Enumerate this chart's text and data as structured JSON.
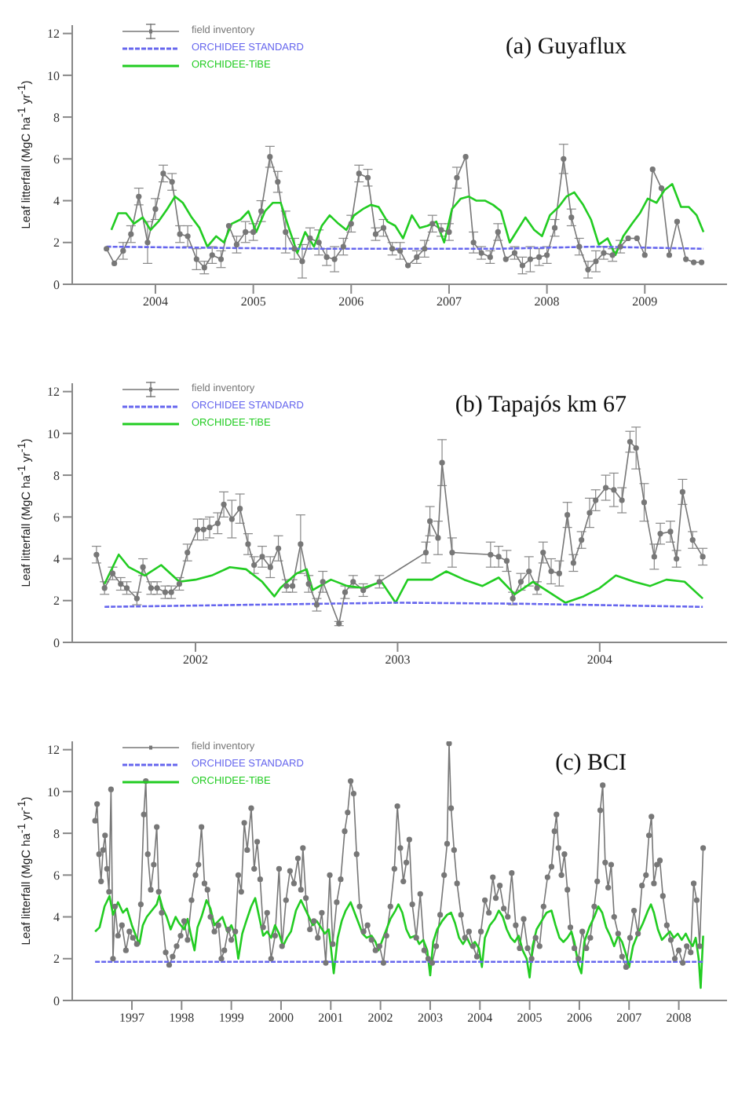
{
  "chart_data": [
    {
      "type": "line",
      "title": "(a) Guyaflux",
      "ylabel": "Leaf litterfall (MgC ha$^{-1}$ yr$^{-1}$)",
      "xlim": [
        2003.15,
        2009.84
      ],
      "xticks": [
        2004,
        2005,
        2006,
        2007,
        2008,
        2009
      ],
      "ylim": [
        0,
        12.4
      ],
      "yticks": [
        0,
        2,
        4,
        6,
        8,
        10,
        12
      ],
      "legend": "top left",
      "series": [
        {
          "name": "field inventory",
          "color": "#777777",
          "marker": "circle",
          "line_style": "solid",
          "x": [
            2003.5,
            2003.58,
            2003.67,
            2003.75,
            2003.83,
            2003.92,
            2004.0,
            2004.08,
            2004.17,
            2004.25,
            2004.33,
            2004.42,
            2004.5,
            2004.58,
            2004.67,
            2004.75,
            2004.83,
            2004.92,
            2005.0,
            2005.08,
            2005.17,
            2005.25,
            2005.33,
            2005.42,
            2005.5,
            2005.58,
            2005.67,
            2005.75,
            2005.83,
            2005.92,
            2006.0,
            2006.08,
            2006.17,
            2006.25,
            2006.33,
            2006.42,
            2006.5,
            2006.58,
            2006.67,
            2006.75,
            2006.83,
            2006.92,
            2007.0,
            2007.08,
            2007.17,
            2007.25,
            2007.33,
            2007.42,
            2007.5,
            2007.58,
            2007.67,
            2007.75,
            2007.83,
            2007.92,
            2008.0,
            2008.08,
            2008.17,
            2008.25,
            2008.33,
            2008.42,
            2008.5,
            2008.58,
            2008.67,
            2008.75,
            2008.83,
            2008.92,
            2009.0,
            2009.08,
            2009.17,
            2009.25,
            2009.33,
            2009.42,
            2009.5,
            2009.58
          ],
          "values": [
            1.7,
            1.0,
            1.6,
            2.4,
            4.2,
            2.0,
            3.6,
            5.3,
            4.9,
            2.4,
            2.3,
            1.2,
            0.8,
            1.4,
            1.2,
            2.8,
            1.9,
            2.5,
            2.5,
            3.5,
            6.1,
            4.9,
            2.5,
            1.7,
            1.1,
            2.2,
            2.0,
            1.3,
            1.2,
            1.8,
            2.9,
            5.3,
            5.1,
            2.4,
            2.7,
            1.7,
            1.6,
            0.9,
            1.3,
            1.7,
            2.9,
            2.6,
            2.5,
            5.1,
            6.1,
            2.0,
            1.5,
            1.3,
            2.5,
            1.2,
            1.5,
            0.9,
            1.2,
            1.3,
            1.4,
            2.7,
            6.0,
            3.2,
            1.8,
            0.7,
            1.1,
            1.5,
            1.4,
            1.8,
            2.2,
            2.2,
            1.4,
            5.5,
            4.6,
            1.4,
            3.0,
            1.2,
            1.05,
            1.05
          ],
          "errors": [
            null,
            null,
            0.4,
            0.4,
            0.4,
            1.0,
            0.5,
            0.4,
            0.4,
            0.4,
            0.5,
            0.5,
            0.3,
            0.4,
            0.4,
            null,
            0.4,
            0.5,
            0.4,
            0.5,
            0.5,
            0.5,
            1.0,
            0.5,
            0.8,
            0.5,
            0.6,
            0.4,
            0.6,
            0.4,
            0.4,
            0.4,
            0.4,
            0.3,
            0.4,
            0.3,
            0.4,
            null,
            0.3,
            0.4,
            0.4,
            0.3,
            0.4,
            0.5,
            null,
            0.5,
            0.3,
            0.3,
            0.4,
            null,
            0.3,
            0.4,
            0.6,
            0.4,
            0.4,
            0.4,
            0.7,
            0.4,
            0.4,
            0.4,
            0.5,
            0.3,
            0.3,
            0.3,
            null,
            null,
            null,
            null,
            null,
            null,
            null,
            null,
            null,
            null
          ]
        },
        {
          "name": "ORCHIDEE STANDARD",
          "color": "#6666ee",
          "marker": "none",
          "line_style": "dashed",
          "x": [
            2003.5,
            2005.5,
            2007.5,
            2008.5,
            2009.6
          ],
          "values": [
            1.8,
            1.7,
            1.7,
            1.8,
            1.7
          ]
        },
        {
          "name": "ORCHIDEE-TiBE",
          "color": "#22cc22",
          "marker": "none",
          "line_style": "solid",
          "x": [
            2003.55,
            2003.62,
            2003.7,
            2003.78,
            2003.87,
            2003.95,
            2004.03,
            2004.12,
            2004.2,
            2004.28,
            2004.37,
            2004.45,
            2004.53,
            2004.62,
            2004.7,
            2004.78,
            2004.87,
            2004.95,
            2005.03,
            2005.12,
            2005.2,
            2005.28,
            2005.37,
            2005.45,
            2005.53,
            2005.62,
            2005.7,
            2005.78,
            2005.87,
            2005.95,
            2006.03,
            2006.12,
            2006.2,
            2006.28,
            2006.37,
            2006.45,
            2006.53,
            2006.62,
            2006.7,
            2006.78,
            2006.87,
            2006.95,
            2007.03,
            2007.12,
            2007.2,
            2007.28,
            2007.37,
            2007.45,
            2007.53,
            2007.62,
            2007.7,
            2007.78,
            2007.87,
            2007.95,
            2008.03,
            2008.12,
            2008.2,
            2008.28,
            2008.37,
            2008.45,
            2008.53,
            2008.62,
            2008.7,
            2008.78,
            2008.87,
            2008.95,
            2009.03,
            2009.12,
            2009.2,
            2009.28,
            2009.37,
            2009.45,
            2009.53,
            2009.6
          ],
          "values": [
            2.6,
            3.4,
            3.4,
            2.9,
            3.2,
            2.6,
            3.0,
            3.6,
            4.2,
            3.9,
            3.2,
            2.7,
            1.8,
            2.3,
            2.0,
            2.9,
            3.1,
            3.5,
            2.5,
            3.5,
            3.9,
            3.9,
            2.6,
            1.5,
            2.5,
            1.8,
            2.8,
            3.3,
            2.9,
            2.6,
            3.3,
            3.6,
            3.8,
            3.7,
            3.0,
            2.8,
            2.2,
            3.3,
            2.7,
            2.8,
            3.0,
            2.0,
            3.6,
            4.1,
            4.2,
            4.0,
            4.0,
            3.8,
            3.5,
            2.0,
            2.6,
            3.2,
            2.6,
            2.3,
            3.3,
            3.7,
            4.2,
            4.4,
            3.8,
            3.1,
            1.9,
            2.2,
            1.4,
            2.3,
            2.9,
            3.4,
            4.1,
            3.9,
            4.5,
            4.8,
            3.7,
            3.7,
            3.3,
            2.5
          ]
        }
      ]
    },
    {
      "type": "line",
      "title": "(b) Tapajós km 67",
      "ylabel": "Leaf litterfall (MgC ha$^{-1}$ yr$^{-1}$)",
      "xlim": [
        2001.39,
        2004.63
      ],
      "xticks": [
        2002,
        2003,
        2004
      ],
      "ylim": [
        0,
        12.4
      ],
      "yticks": [
        0,
        2,
        4,
        6,
        8,
        10,
        12
      ],
      "legend": "top left",
      "series": [
        {
          "name": "field inventory",
          "color": "#777777",
          "marker": "circle",
          "line_style": "solid",
          "x": [
            2001.51,
            2001.55,
            2001.59,
            2001.63,
            2001.66,
            2001.71,
            2001.74,
            2001.78,
            2001.81,
            2001.85,
            2001.88,
            2001.92,
            2001.96,
            2002.01,
            2002.04,
            2002.07,
            2002.11,
            2002.14,
            2002.18,
            2002.22,
            2002.26,
            2002.29,
            2002.33,
            2002.37,
            2002.41,
            2002.45,
            2002.48,
            2002.52,
            2002.56,
            2002.6,
            2002.63,
            2002.71,
            2002.74,
            2002.78,
            2002.83,
            2002.91,
            2003.14,
            2003.16,
            2003.2,
            2003.22,
            2003.27,
            2003.46,
            2003.5,
            2003.54,
            2003.57,
            2003.61,
            2003.65,
            2003.69,
            2003.72,
            2003.76,
            2003.8,
            2003.84,
            2003.87,
            2003.91,
            2003.95,
            2003.98,
            2004.03,
            2004.07,
            2004.11,
            2004.15,
            2004.18,
            2004.22,
            2004.27,
            2004.3,
            2004.35,
            2004.38,
            2004.41,
            2004.46,
            2004.51
          ],
          "values": [
            4.2,
            2.6,
            3.3,
            2.8,
            2.6,
            2.1,
            3.6,
            2.6,
            2.6,
            2.4,
            2.4,
            2.8,
            4.3,
            5.4,
            5.4,
            5.5,
            5.7,
            6.6,
            5.9,
            6.4,
            4.7,
            3.7,
            4.1,
            3.6,
            4.5,
            2.7,
            2.7,
            4.7,
            2.8,
            1.8,
            2.9,
            0.9,
            2.4,
            2.9,
            2.5,
            2.9,
            4.3,
            5.8,
            5.0,
            8.6,
            4.3,
            4.2,
            4.1,
            3.9,
            2.1,
            2.9,
            3.4,
            2.6,
            4.3,
            3.4,
            3.3,
            6.1,
            3.8,
            4.9,
            6.2,
            6.8,
            7.4,
            7.3,
            6.8,
            9.6,
            9.3,
            6.7,
            4.1,
            5.2,
            5.3,
            4.0,
            7.2,
            4.9,
            4.1
          ],
          "errors": [
            0.4,
            0.3,
            0.3,
            0.3,
            0.3,
            0.3,
            0.4,
            0.3,
            0.3,
            0.3,
            0.3,
            0.3,
            0.4,
            0.5,
            0.5,
            0.5,
            0.5,
            0.6,
            0.9,
            0.7,
            0.5,
            0.4,
            0.5,
            0.5,
            0.6,
            0.3,
            0.3,
            1.4,
            0.4,
            0.3,
            0.5,
            0.1,
            0.3,
            0.3,
            0.3,
            0.3,
            0.5,
            0.7,
            0.8,
            1.1,
            0.7,
            0.6,
            0.5,
            0.5,
            0.3,
            0.4,
            0.7,
            0.3,
            0.5,
            0.6,
            0.6,
            0.6,
            0.4,
            0.4,
            0.7,
            0.5,
            0.6,
            0.8,
            0.6,
            0.5,
            1.0,
            0.9,
            0.6,
            0.5,
            0.5,
            0.4,
            0.6,
            0.4,
            0.4
          ]
        },
        {
          "name": "ORCHIDEE STANDARD",
          "color": "#6666ee",
          "marker": "none",
          "line_style": "dashed",
          "x": [
            2001.55,
            2003.0,
            2003.6,
            2004.51
          ],
          "values": [
            1.7,
            1.9,
            1.85,
            1.7
          ]
        },
        {
          "name": "ORCHIDEE-TiBE",
          "color": "#22cc22",
          "marker": "none",
          "line_style": "solid",
          "x": [
            2001.55,
            2001.62,
            2001.67,
            2001.75,
            2001.83,
            2001.92,
            2002.0,
            2002.08,
            2002.17,
            2002.25,
            2002.33,
            2002.39,
            2002.42,
            2002.5,
            2002.55,
            2002.58,
            2002.67,
            2002.75,
            2002.83,
            2002.92,
            2002.99,
            2003.05,
            2003.17,
            2003.24,
            2003.33,
            2003.42,
            2003.5,
            2003.58,
            2003.67,
            2003.75,
            2003.83,
            2003.92,
            2004.0,
            2004.08,
            2004.17,
            2004.25,
            2004.33,
            2004.42,
            2004.51
          ],
          "values": [
            2.8,
            4.2,
            3.6,
            3.2,
            3.7,
            2.9,
            3.0,
            3.2,
            3.6,
            3.5,
            2.9,
            2.2,
            2.6,
            3.3,
            3.5,
            2.5,
            3.0,
            2.7,
            2.6,
            2.9,
            1.9,
            3.0,
            3.0,
            3.4,
            3.0,
            2.7,
            3.1,
            2.3,
            2.9,
            2.4,
            1.9,
            2.2,
            2.6,
            3.2,
            2.9,
            2.7,
            3.0,
            2.9,
            2.1
          ]
        }
      ]
    },
    {
      "type": "line",
      "title": "(c) BCI",
      "ylabel": "Leaf litterfall (MgC ha$^{-1}$ yr$^{-1}$)",
      "xlim": [
        1995.8,
        2008.97
      ],
      "xticks": [
        1997,
        1998,
        1999,
        2000,
        2001,
        2002,
        2003,
        2004,
        2005,
        2006,
        2007,
        2008
      ],
      "ylim": [
        0,
        12.4
      ],
      "yticks": [
        0,
        2,
        4,
        6,
        8,
        10,
        12
      ],
      "legend": "top left",
      "series": [
        {
          "name": "field inventory",
          "color": "#777777",
          "marker": "circle",
          "line_style": "solid",
          "x": [
            1996.26,
            1996.3,
            1996.34,
            1996.38,
            1996.42,
            1996.46,
            1996.5,
            1996.54,
            1996.58,
            1996.62,
            1996.66,
            1996.72,
            1996.8,
            1996.88,
            1996.95,
            1997.02,
            1997.1,
            1997.18,
            1997.24,
            1997.28,
            1997.32,
            1997.38,
            1997.44,
            1997.5,
            1997.54,
            1997.6,
            1997.68,
            1997.75,
            1997.82,
            1997.9,
            1997.98,
            1998.05,
            1998.12,
            1998.2,
            1998.28,
            1998.34,
            1998.4,
            1998.46,
            1998.52,
            1998.58,
            1998.66,
            1998.74,
            1998.8,
            1998.86,
            1998.94,
            1999.0,
            1999.08,
            1999.14,
            1999.2,
            1999.26,
            1999.32,
            1999.4,
            1999.46,
            1999.52,
            1999.58,
            1999.64,
            1999.72,
            1999.8,
            1999.88,
            1999.96,
            2000.02,
            2000.1,
            2000.18,
            2000.26,
            2000.34,
            2000.4,
            2000.44,
            2000.5,
            2000.58,
            2000.66,
            2000.74,
            2000.82,
            2000.9,
            2000.98,
            2001.04,
            2001.12,
            2001.2,
            2001.28,
            2001.34,
            2001.4,
            2001.46,
            2001.52,
            2001.58,
            2001.66,
            2001.74,
            2001.82,
            2001.9,
            2001.98,
            2002.06,
            2002.12,
            2002.2,
            2002.28,
            2002.34,
            2002.4,
            2002.46,
            2002.52,
            2002.58,
            2002.64,
            2002.72,
            2002.8,
            2002.88,
            2002.96,
            2003.04,
            2003.12,
            2003.2,
            2003.28,
            2003.34,
            2003.38,
            2003.42,
            2003.48,
            2003.54,
            2003.62,
            2003.7,
            2003.78,
            2003.86,
            2003.94,
            2004.02,
            2004.1,
            2004.18,
            2004.26,
            2004.32,
            2004.4,
            2004.48,
            2004.56,
            2004.64,
            2004.72,
            2004.8,
            2004.88,
            2004.96,
            2005.04,
            2005.12,
            2005.2,
            2005.28,
            2005.36,
            2005.44,
            2005.5,
            2005.54,
            2005.58,
            2005.64,
            2005.7,
            2005.76,
            2005.82,
            2005.9,
            2005.98,
            2006.06,
            2006.14,
            2006.22,
            2006.3,
            2006.36,
            2006.42,
            2006.47,
            2006.52,
            2006.58,
            2006.64,
            2006.7,
            2006.78,
            2006.86,
            2006.94,
            2007.02,
            2007.1,
            2007.18,
            2007.26,
            2007.34,
            2007.4,
            2007.45,
            2007.5,
            2007.56,
            2007.62,
            2007.68,
            2007.76,
            2007.84,
            2007.92,
            2008.0,
            2008.08,
            2008.16,
            2008.24,
            2008.3,
            2008.36,
            2008.42,
            2008.49
          ],
          "values": [
            8.6,
            9.4,
            7.0,
            5.7,
            7.2,
            7.9,
            6.3,
            5.2,
            10.1,
            2.0,
            4.5,
            3.1,
            3.6,
            2.4,
            3.3,
            3.0,
            2.7,
            4.6,
            8.9,
            10.5,
            7.0,
            5.3,
            6.5,
            8.3,
            5.2,
            4.2,
            2.3,
            1.7,
            2.1,
            2.6,
            3.1,
            3.8,
            2.9,
            4.8,
            6.0,
            6.5,
            8.3,
            5.6,
            5.3,
            4.0,
            3.3,
            3.6,
            2.0,
            2.4,
            3.4,
            2.9,
            3.3,
            6.0,
            5.2,
            8.5,
            7.2,
            9.2,
            6.3,
            7.6,
            5.8,
            3.5,
            4.2,
            2.0,
            3.1,
            6.3,
            2.6,
            4.8,
            6.2,
            5.6,
            6.8,
            5.3,
            7.3,
            4.9,
            3.4,
            3.8,
            3.0,
            4.2,
            1.8,
            6.0,
            2.7,
            4.7,
            5.8,
            8.1,
            9.0,
            10.5,
            9.9,
            7.0,
            4.5,
            3.3,
            3.6,
            2.9,
            2.4,
            2.6,
            1.8,
            3.1,
            4.5,
            6.3,
            9.3,
            7.3,
            5.7,
            6.6,
            7.7,
            4.6,
            3.0,
            5.1,
            2.4,
            2.0,
            1.8,
            2.6,
            4.1,
            6.0,
            7.5,
            12.3,
            9.2,
            7.2,
            5.6,
            4.1,
            3.0,
            3.3,
            2.6,
            2.1,
            3.3,
            4.8,
            4.2,
            5.9,
            4.9,
            5.5,
            4.4,
            4.0,
            6.1,
            3.6,
            2.5,
            3.9,
            2.5,
            2.0,
            3.0,
            2.6,
            4.5,
            5.9,
            6.4,
            8.1,
            8.9,
            7.3,
            6.0,
            7.0,
            5.3,
            3.5,
            2.5,
            2.0,
            3.3,
            2.5,
            3.0,
            4.5,
            5.7,
            9.1,
            10.3,
            6.6,
            5.4,
            6.5,
            4.0,
            3.2,
            2.1,
            1.6,
            3.0,
            4.3,
            3.2,
            5.5,
            6.0,
            7.9,
            8.8,
            5.6,
            6.5,
            6.7,
            5.0,
            3.6,
            2.9,
            2.0,
            2.4,
            1.8,
            2.6,
            2.3,
            5.6,
            4.8,
            2.6,
            7.3
          ]
        },
        {
          "name": "ORCHIDEE STANDARD",
          "color": "#6666ee",
          "marker": "none",
          "line_style": "dashed",
          "x": [
            1996.26,
            2008.49
          ],
          "values": [
            1.85,
            1.85
          ]
        },
        {
          "name": "ORCHIDEE-TiBE",
          "color": "#22cc22",
          "marker": "none",
          "line_style": "solid",
          "x": [
            1996.26,
            1996.35,
            1996.45,
            1996.55,
            1996.62,
            1996.72,
            1996.82,
            1996.9,
            1997.0,
            1997.08,
            1997.15,
            1997.22,
            1997.3,
            1997.4,
            1997.5,
            1997.55,
            1997.62,
            1997.7,
            1997.78,
            1997.88,
            1997.95,
            1998.05,
            1998.12,
            1998.2,
            1998.26,
            1998.32,
            1998.4,
            1998.5,
            1998.58,
            1998.66,
            1998.74,
            1998.82,
            1998.92,
            1999.0,
            1999.08,
            1999.14,
            1999.22,
            1999.3,
            1999.4,
            1999.48,
            1999.56,
            1999.64,
            1999.72,
            1999.8,
            1999.88,
            1999.96,
            2000.04,
            2000.12,
            2000.2,
            2000.3,
            2000.4,
            2000.48,
            2000.56,
            2000.64,
            2000.72,
            2000.8,
            2000.88,
            2000.96,
            2001.0,
            2001.06,
            2001.14,
            2001.22,
            2001.3,
            2001.4,
            2001.48,
            2001.56,
            2001.64,
            2001.72,
            2001.82,
            2001.9,
            2001.96,
            2002.04,
            2002.12,
            2002.2,
            2002.3,
            2002.36,
            2002.44,
            2002.52,
            2002.6,
            2002.7,
            2002.78,
            2002.86,
            2002.94,
            2003.0,
            2003.06,
            2003.14,
            2003.24,
            2003.34,
            2003.42,
            2003.5,
            2003.58,
            2003.66,
            2003.74,
            2003.82,
            2003.9,
            2003.98,
            2004.04,
            2004.1,
            2004.2,
            2004.3,
            2004.38,
            2004.46,
            2004.54,
            2004.62,
            2004.7,
            2004.78,
            2004.86,
            2004.94,
            2005.0,
            2005.06,
            2005.14,
            2005.24,
            2005.34,
            2005.44,
            2005.52,
            2005.6,
            2005.68,
            2005.76,
            2005.84,
            2005.9,
            2005.98,
            2006.04,
            2006.1,
            2006.2,
            2006.3,
            2006.38,
            2006.46,
            2006.54,
            2006.62,
            2006.7,
            2006.78,
            2006.86,
            2006.94,
            2007.0,
            2007.08,
            2007.18,
            2007.28,
            2007.38,
            2007.44,
            2007.5,
            2007.58,
            2007.66,
            2007.74,
            2007.82,
            2007.9,
            2007.98,
            2008.06,
            2008.14,
            2008.22,
            2008.28,
            2008.34,
            2008.4,
            2008.44,
            2008.49
          ],
          "values": [
            3.3,
            3.5,
            4.5,
            5.0,
            4.1,
            4.7,
            4.2,
            4.4,
            3.6,
            3.1,
            2.7,
            3.6,
            4.0,
            4.3,
            4.6,
            5.0,
            4.4,
            4.0,
            3.4,
            4.0,
            3.7,
            3.4,
            3.9,
            3.0,
            2.4,
            3.5,
            4.0,
            4.8,
            4.4,
            3.6,
            3.8,
            4.0,
            3.3,
            3.6,
            3.1,
            2.0,
            3.2,
            3.8,
            4.5,
            4.9,
            4.0,
            3.1,
            3.3,
            3.0,
            3.6,
            3.2,
            2.6,
            3.0,
            3.3,
            4.3,
            4.8,
            4.4,
            4.0,
            3.6,
            3.8,
            3.5,
            3.2,
            3.4,
            2.6,
            1.3,
            3.0,
            3.8,
            4.3,
            4.7,
            4.2,
            3.7,
            3.2,
            3.0,
            3.1,
            2.8,
            2.4,
            2.9,
            3.4,
            3.9,
            4.3,
            4.6,
            4.2,
            3.4,
            3.0,
            3.1,
            2.7,
            2.9,
            2.4,
            1.2,
            2.8,
            3.4,
            3.8,
            4.1,
            4.2,
            3.7,
            3.0,
            2.7,
            3.0,
            2.6,
            2.8,
            2.5,
            1.6,
            3.0,
            3.6,
            3.9,
            4.3,
            4.0,
            3.4,
            3.0,
            2.8,
            3.1,
            2.4,
            2.0,
            1.1,
            2.6,
            3.4,
            3.8,
            4.2,
            4.3,
            3.6,
            3.0,
            2.8,
            3.0,
            3.3,
            2.8,
            1.7,
            1.3,
            2.8,
            3.5,
            4.0,
            4.5,
            4.2,
            3.5,
            3.1,
            2.6,
            3.1,
            2.8,
            2.2,
            1.6,
            2.6,
            3.2,
            3.7,
            4.3,
            4.6,
            4.2,
            3.4,
            2.9,
            3.1,
            3.3,
            3.0,
            3.2,
            2.9,
            3.2,
            2.8,
            2.6,
            3.0,
            2.0,
            0.6,
            3.1
          ]
        }
      ]
    }
  ]
}
